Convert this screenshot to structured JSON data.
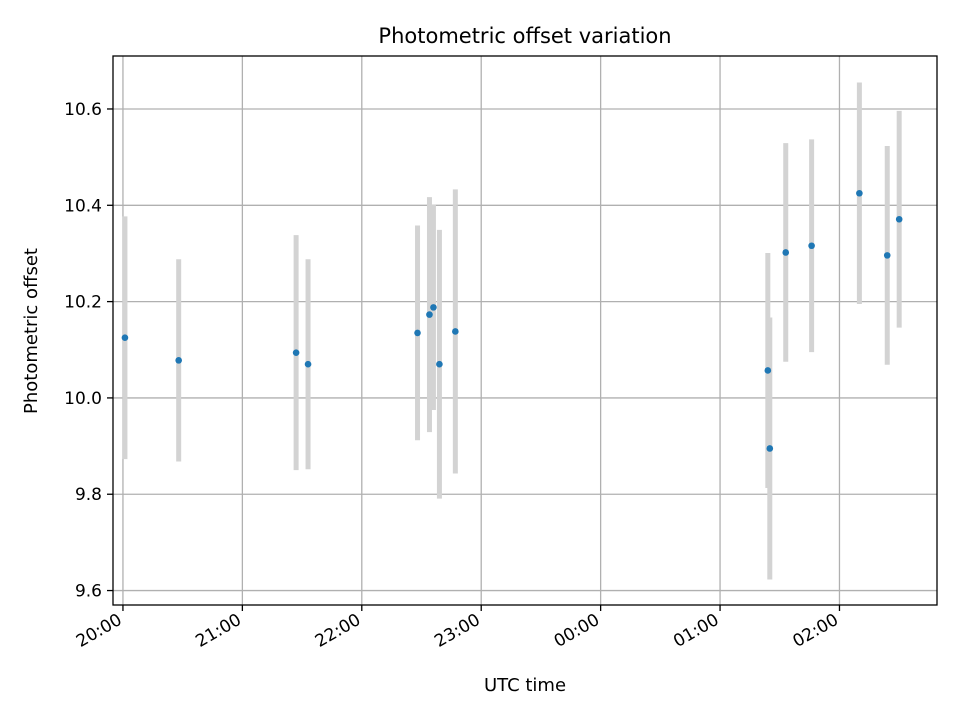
{
  "chart_data": {
    "type": "scatter",
    "title": "Photometric offset variation",
    "xlabel": "UTC time",
    "ylabel": "Photometric offset",
    "x_tick_labels": [
      "20:00",
      "21:00",
      "22:00",
      "23:00",
      "00:00",
      "01:00",
      "02:00"
    ],
    "y_tick_labels": [
      "9.6",
      "9.8",
      "10.0",
      "10.2",
      "10.4",
      "10.6"
    ],
    "x_ticks": [
      "20:00",
      "21:00",
      "22:00",
      "23:00",
      "00:00",
      "01:00",
      "02:00"
    ],
    "y_ticks": [
      9.6,
      9.8,
      10.0,
      10.2,
      10.4,
      10.6
    ],
    "xlim": [
      "19:55",
      "02:49"
    ],
    "ylim": [
      9.57,
      10.71
    ],
    "grid": true,
    "colors": {
      "point": "#1f77b4",
      "errorbar": "#d3d3d3",
      "grid": "#b0b0b0"
    },
    "series": [
      {
        "x": [
          "20:01",
          "20:28",
          "21:27",
          "21:33",
          "22:28",
          "22:34",
          "22:36",
          "22:39",
          "22:47",
          "01:24",
          "01:25",
          "01:33",
          "01:46",
          "02:10",
          "02:24",
          "02:30"
        ],
        "y": [
          10.125,
          10.078,
          10.094,
          10.07,
          10.135,
          10.173,
          10.188,
          10.07,
          10.138,
          10.057,
          9.895,
          10.302,
          10.316,
          10.425,
          10.296,
          10.371
        ],
        "yerr": [
          0.252,
          0.21,
          0.244,
          0.218,
          0.223,
          0.244,
          0.213,
          0.279,
          0.295,
          0.244,
          0.272,
          0.227,
          0.221,
          0.23,
          0.227,
          0.225
        ]
      }
    ]
  }
}
